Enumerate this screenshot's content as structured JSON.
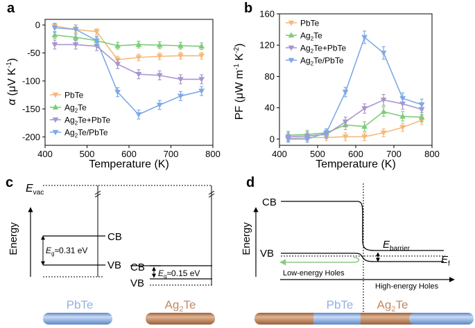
{
  "panels": {
    "a": {
      "letter": "a",
      "ylabel_symbol": "α",
      "ylabel_units_prefix": "(μV K",
      "ylabel_units_sup": "-1",
      "ylabel_units_suffix": ")",
      "xlabel": "Temperature (K)",
      "xticks": [
        "400",
        "500",
        "600",
        "700",
        "800"
      ],
      "yticks": [
        "0",
        "-50",
        "-100",
        "-150",
        "-200"
      ],
      "legend": [
        {
          "pre": "PbTe",
          "sub": "",
          "post": ""
        },
        {
          "pre": "Ag",
          "sub": "2",
          "post": "Te"
        },
        {
          "pre": "Ag",
          "sub": "2",
          "post": "Te+PbTe"
        },
        {
          "pre": "Ag",
          "sub": "2",
          "post": "Te/PbTe"
        }
      ]
    },
    "b": {
      "letter": "b",
      "ylabel_pre": "PF (μW m",
      "ylabel_sup1": "-1",
      "ylabel_mid": " K",
      "ylabel_sup2": "-2",
      "ylabel_post": ")",
      "xlabel": "Temperature (K)",
      "xticks": [
        "400",
        "500",
        "600",
        "700",
        "800"
      ],
      "yticks": [
        "0",
        "40",
        "80",
        "120",
        "160"
      ],
      "legend": [
        {
          "pre": "PbTe",
          "sub": "",
          "post": ""
        },
        {
          "pre": "Ag",
          "sub": "2",
          "post": "Te"
        },
        {
          "pre": "Ag",
          "sub": "2",
          "post": "Te+PbTe"
        },
        {
          "pre": "Ag",
          "sub": "2",
          "post": "Te/PbTe"
        }
      ]
    },
    "c": {
      "letter": "c",
      "evac_main": "E",
      "evac_sub": "vac",
      "energy_label": "Energy",
      "cb_label": "CB",
      "vb_label": "VB",
      "cb2_label": "CB",
      "vb2_label": "VB",
      "eg1_main": "E",
      "eg1_sub": "g",
      "eg1_value": "≈0.31 eV",
      "eg2_main": "E",
      "eg2_sub": "g",
      "eg2_value": "≈0.15 eV",
      "material1": "PbTe",
      "material2_pre": "Ag",
      "material2_sub": "2",
      "material2_post": "Te"
    },
    "d": {
      "letter": "d",
      "energy_label": "Energy",
      "cb_label": "CB",
      "vb_label": "VB",
      "ebarrier_main": "E",
      "ebarrier_sub": "barrier",
      "ef_main": "E",
      "ef_sub": "f",
      "low_holes": "Low-energy Holes",
      "high_holes": "High-energy Holes",
      "material1": "PbTe",
      "material2_pre": "Ag",
      "material2_sub": "2",
      "material2_post": "Te"
    }
  },
  "colors": {
    "PbTe": "#f5b97a",
    "Ag2Te": "#7dcc7a",
    "Ag2Te+PbTe": "#a895d0",
    "Ag2Te/PbTe": "#7fa9e6",
    "pbte_bar": "#8fb0e3",
    "ag2te_bar": "#c08a63",
    "arrow_green": "#8cc980"
  },
  "chart_data": [
    {
      "type": "line",
      "panel": "a",
      "xlabel": "Temperature (K)",
      "ylabel": "α (μV K-1)",
      "xlim": [
        400,
        800
      ],
      "ylim": [
        -215,
        10
      ],
      "x": [
        423,
        473,
        523,
        573,
        623,
        673,
        723,
        773
      ],
      "series": [
        {
          "name": "PbTe",
          "values": [
            -2,
            -8,
            -12,
            -62,
            -58,
            -56,
            -55,
            -55
          ],
          "err": [
            5,
            5,
            5,
            6,
            6,
            6,
            6,
            6
          ]
        },
        {
          "name": "Ag2Te",
          "values": [
            -18,
            -22,
            -28,
            -37,
            -35,
            -36,
            -37,
            -38
          ],
          "err": [
            6,
            6,
            6,
            6,
            6,
            6,
            6,
            6
          ]
        },
        {
          "name": "Ag2Te+PbTe",
          "values": [
            -35,
            -35,
            -38,
            -70,
            -88,
            -90,
            -97,
            -97
          ],
          "err": [
            8,
            8,
            8,
            8,
            8,
            8,
            8,
            8
          ]
        },
        {
          "name": "Ag2Te/PbTe",
          "values": [
            -5,
            -8,
            -28,
            -120,
            -160,
            -143,
            -127,
            -118
          ],
          "err": [
            8,
            8,
            8,
            8,
            8,
            8,
            8,
            8
          ]
        }
      ]
    },
    {
      "type": "line",
      "panel": "b",
      "xlabel": "Temperature (K)",
      "ylabel": "PF (μW m-1 K-2)",
      "xlim": [
        400,
        800
      ],
      "ylim": [
        -8,
        160
      ],
      "x": [
        423,
        473,
        523,
        573,
        623,
        673,
        723,
        773
      ],
      "series": [
        {
          "name": "PbTe",
          "values": [
            1,
            2,
            2,
            3,
            3,
            8,
            15,
            24
          ],
          "err": [
            4,
            4,
            4,
            5,
            5,
            5,
            5,
            5
          ]
        },
        {
          "name": "Ag2Te",
          "values": [
            5,
            6,
            8,
            18,
            16,
            35,
            29,
            28
          ],
          "err": [
            5,
            5,
            5,
            6,
            6,
            6,
            6,
            6
          ]
        },
        {
          "name": "Ag2Te+PbTe",
          "values": [
            3,
            4,
            6,
            22,
            39,
            50,
            45,
            38
          ],
          "err": [
            5,
            5,
            5,
            6,
            6,
            7,
            7,
            7
          ]
        },
        {
          "name": "Ag2Te/PbTe",
          "values": [
            0,
            0,
            8,
            60,
            130,
            110,
            52,
            44
          ],
          "err": [
            4,
            4,
            5,
            6,
            8,
            8,
            7,
            7
          ]
        }
      ]
    }
  ]
}
